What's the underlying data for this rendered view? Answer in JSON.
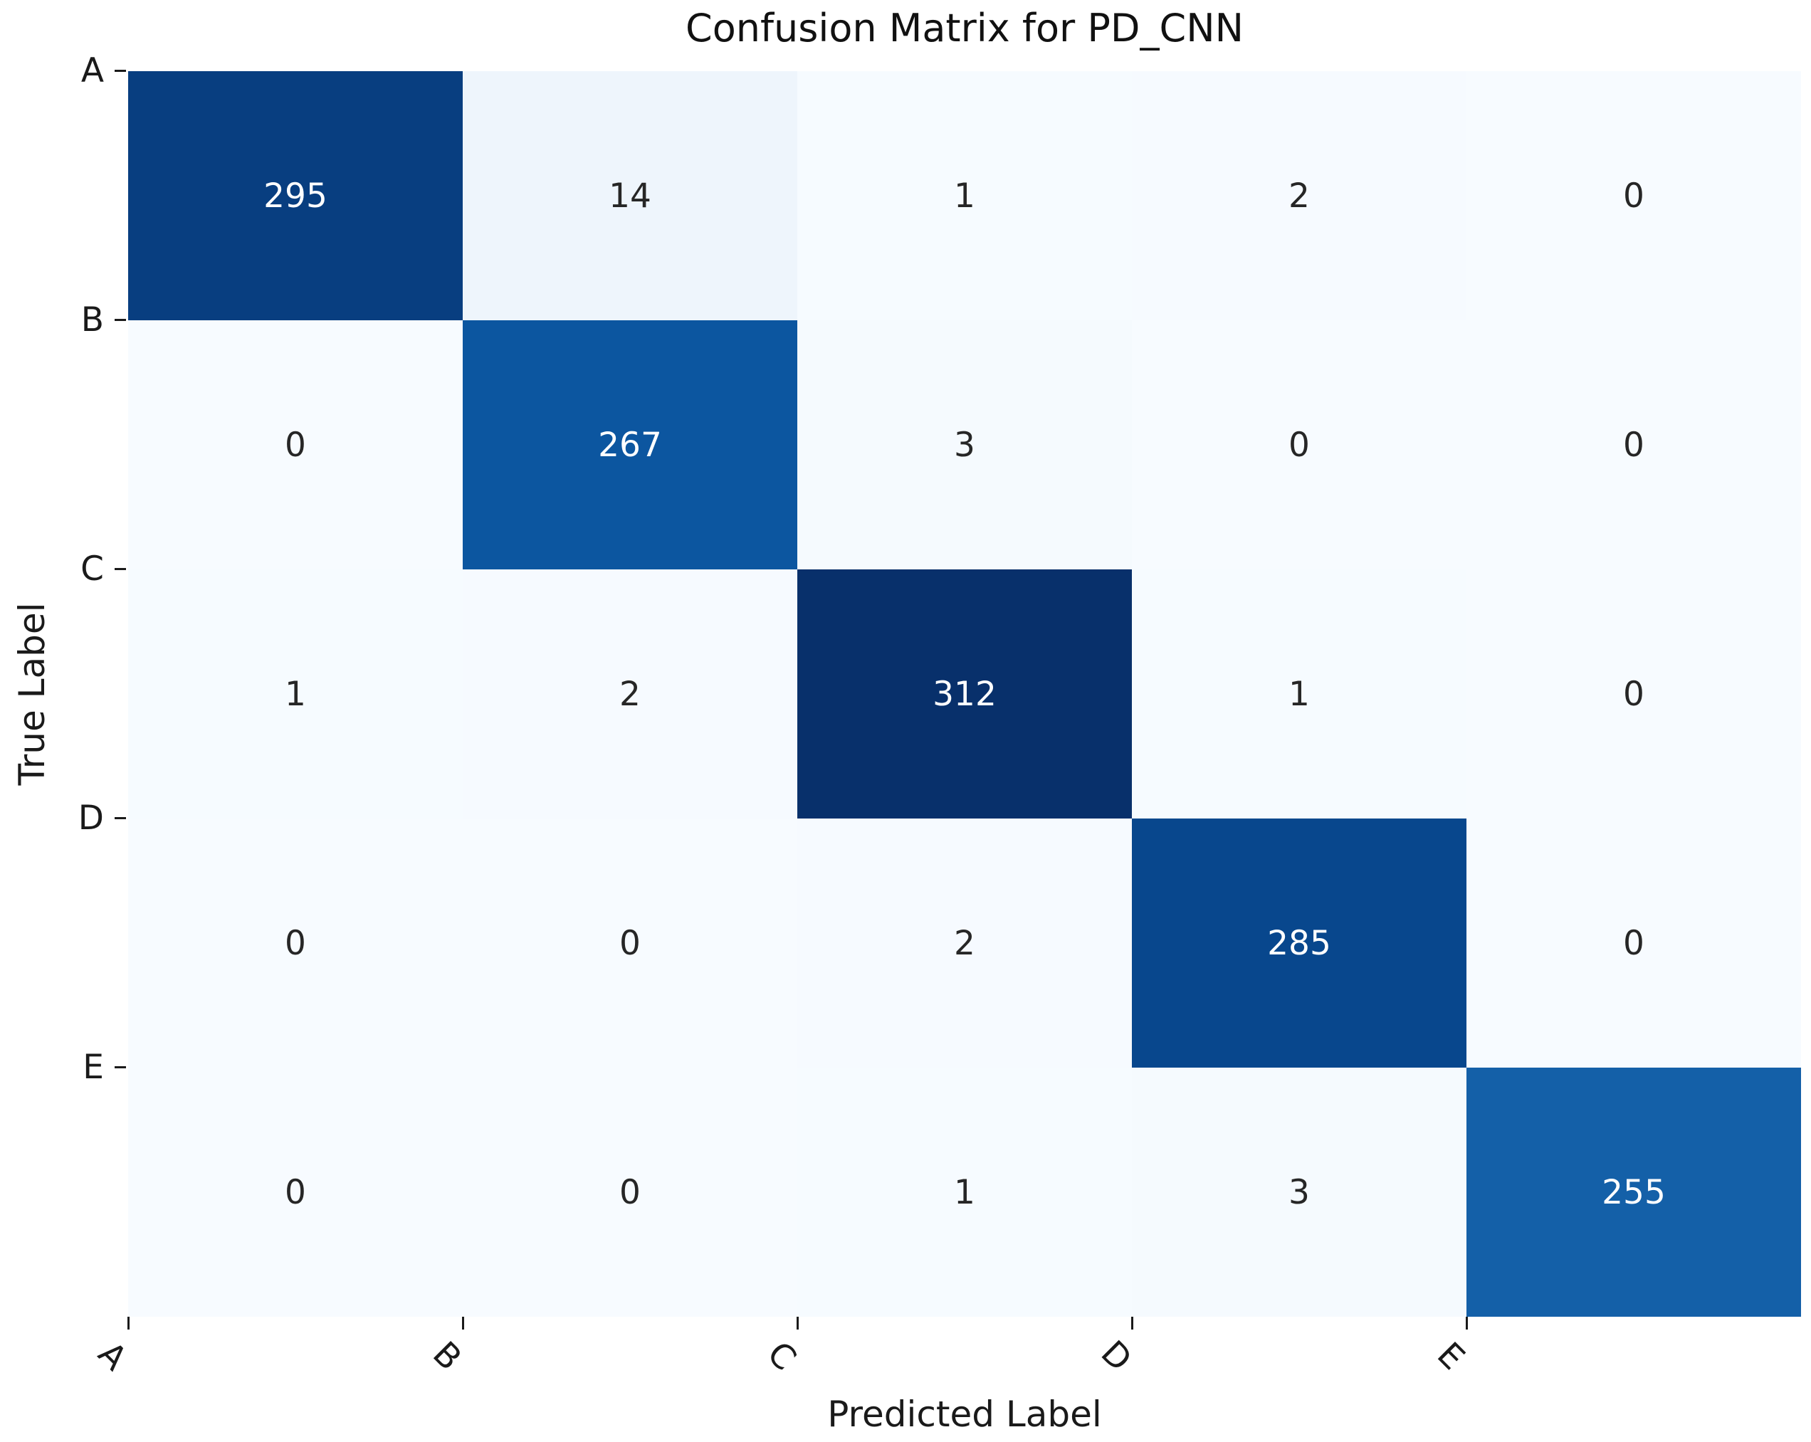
{
  "figure": {
    "background_color": "#ffffff"
  },
  "chart_data": {
    "type": "heatmap",
    "title": "Confusion Matrix for PD_CNN",
    "xlabel": "Predicted Label",
    "ylabel": "True Label",
    "x_tick_labels": [
      "A",
      "B",
      "C",
      "D",
      "E"
    ],
    "y_tick_labels": [
      "A",
      "B",
      "C",
      "D",
      "E"
    ],
    "matrix": [
      [
        295,
        14,
        1,
        2,
        0
      ],
      [
        0,
        267,
        3,
        0,
        0
      ],
      [
        1,
        2,
        312,
        1,
        0
      ],
      [
        0,
        0,
        2,
        285,
        0
      ],
      [
        0,
        0,
        1,
        3,
        255
      ]
    ],
    "vmin": 0,
    "vmax": 312,
    "colormap": "Blues",
    "colormap_stops": [
      {
        "pos": 0.0,
        "color": "#f7fbff"
      },
      {
        "pos": 0.125,
        "color": "#deebf7"
      },
      {
        "pos": 0.25,
        "color": "#c6dbef"
      },
      {
        "pos": 0.375,
        "color": "#9ecae1"
      },
      {
        "pos": 0.5,
        "color": "#6baed6"
      },
      {
        "pos": 0.625,
        "color": "#4292c6"
      },
      {
        "pos": 0.75,
        "color": "#2171b5"
      },
      {
        "pos": 0.875,
        "color": "#08519c"
      },
      {
        "pos": 1.0,
        "color": "#08306b"
      }
    ],
    "annotation_text_color_on_dark": "#ffffff",
    "annotation_text_color_on_light": "#262626",
    "x_tick_rotation_deg": 45,
    "colorbar": "none",
    "grid": false
  }
}
